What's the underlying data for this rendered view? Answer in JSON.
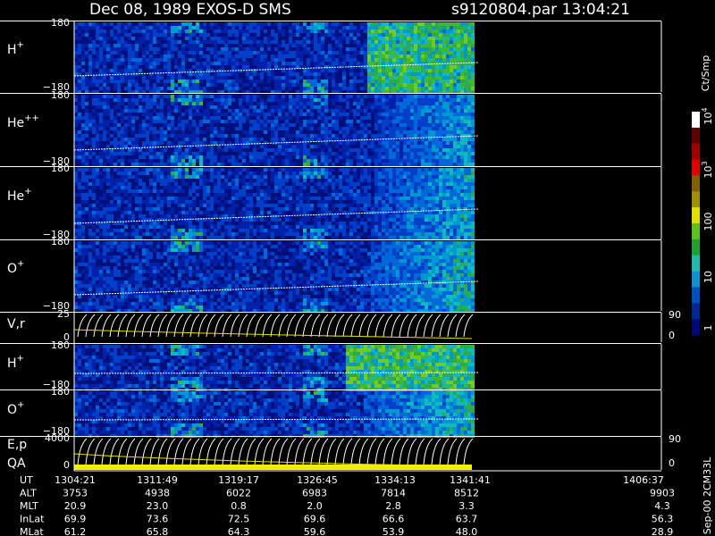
{
  "header": {
    "title": "Dec 08, 1989   EXOS-D SMS",
    "file": "s9120804.par  13:04:21"
  },
  "panels": [
    {
      "label": "H",
      "sup": "+",
      "ticks": [
        "180",
        "−180"
      ]
    },
    {
      "label": "He",
      "sup": "++",
      "ticks": [
        "180",
        "−180"
      ]
    },
    {
      "label": "He",
      "sup": "+",
      "ticks": [
        "180",
        "−180"
      ]
    },
    {
      "label": "O",
      "sup": "+",
      "ticks": [
        "180",
        "−180"
      ]
    },
    {
      "label": "V,r",
      "ticks": [
        "25",
        "0"
      ],
      "right_ticks": [
        "90",
        "0"
      ]
    },
    {
      "label": "H",
      "sup": "+",
      "ticks": [
        "180",
        "−180"
      ]
    },
    {
      "label": "O",
      "sup": "+",
      "ticks": [
        "180",
        "−180"
      ]
    },
    {
      "label": "E,p",
      "ticks": [
        "4000",
        "0"
      ],
      "right_ticks": [
        "90",
        "0"
      ]
    }
  ],
  "qa_label": "QA",
  "colorbar": {
    "unit": "Ct/Smp",
    "ticks": [
      "1",
      "10",
      "100"
    ],
    "power_ticks": [
      {
        "base": "10",
        "exp": "3"
      },
      {
        "base": "10",
        "exp": "4"
      }
    ]
  },
  "ephemeris": {
    "labels": [
      "UT",
      "ALT",
      "MLT",
      "InLat",
      "MLat"
    ],
    "rows": [
      [
        "1304:21",
        "1311:49",
        "1319:17",
        "1326:45",
        "1334:13",
        "1341:41",
        "1406:37"
      ],
      [
        "3753",
        "4938",
        "6022",
        "6983",
        "7814",
        "8512",
        "9903"
      ],
      [
        "20.9",
        "23.0",
        "0.8",
        "2.0",
        "2.8",
        "3.3",
        "4.3"
      ],
      [
        "69.9",
        "73.6",
        "72.5",
        "69.6",
        "66.6",
        "63.7",
        "56.3"
      ],
      [
        "61.2",
        "65.8",
        "64.3",
        "59.6",
        "53.9",
        "48.0",
        "28.9"
      ]
    ]
  },
  "footer_note": "Sep-00 2CM33L"
}
